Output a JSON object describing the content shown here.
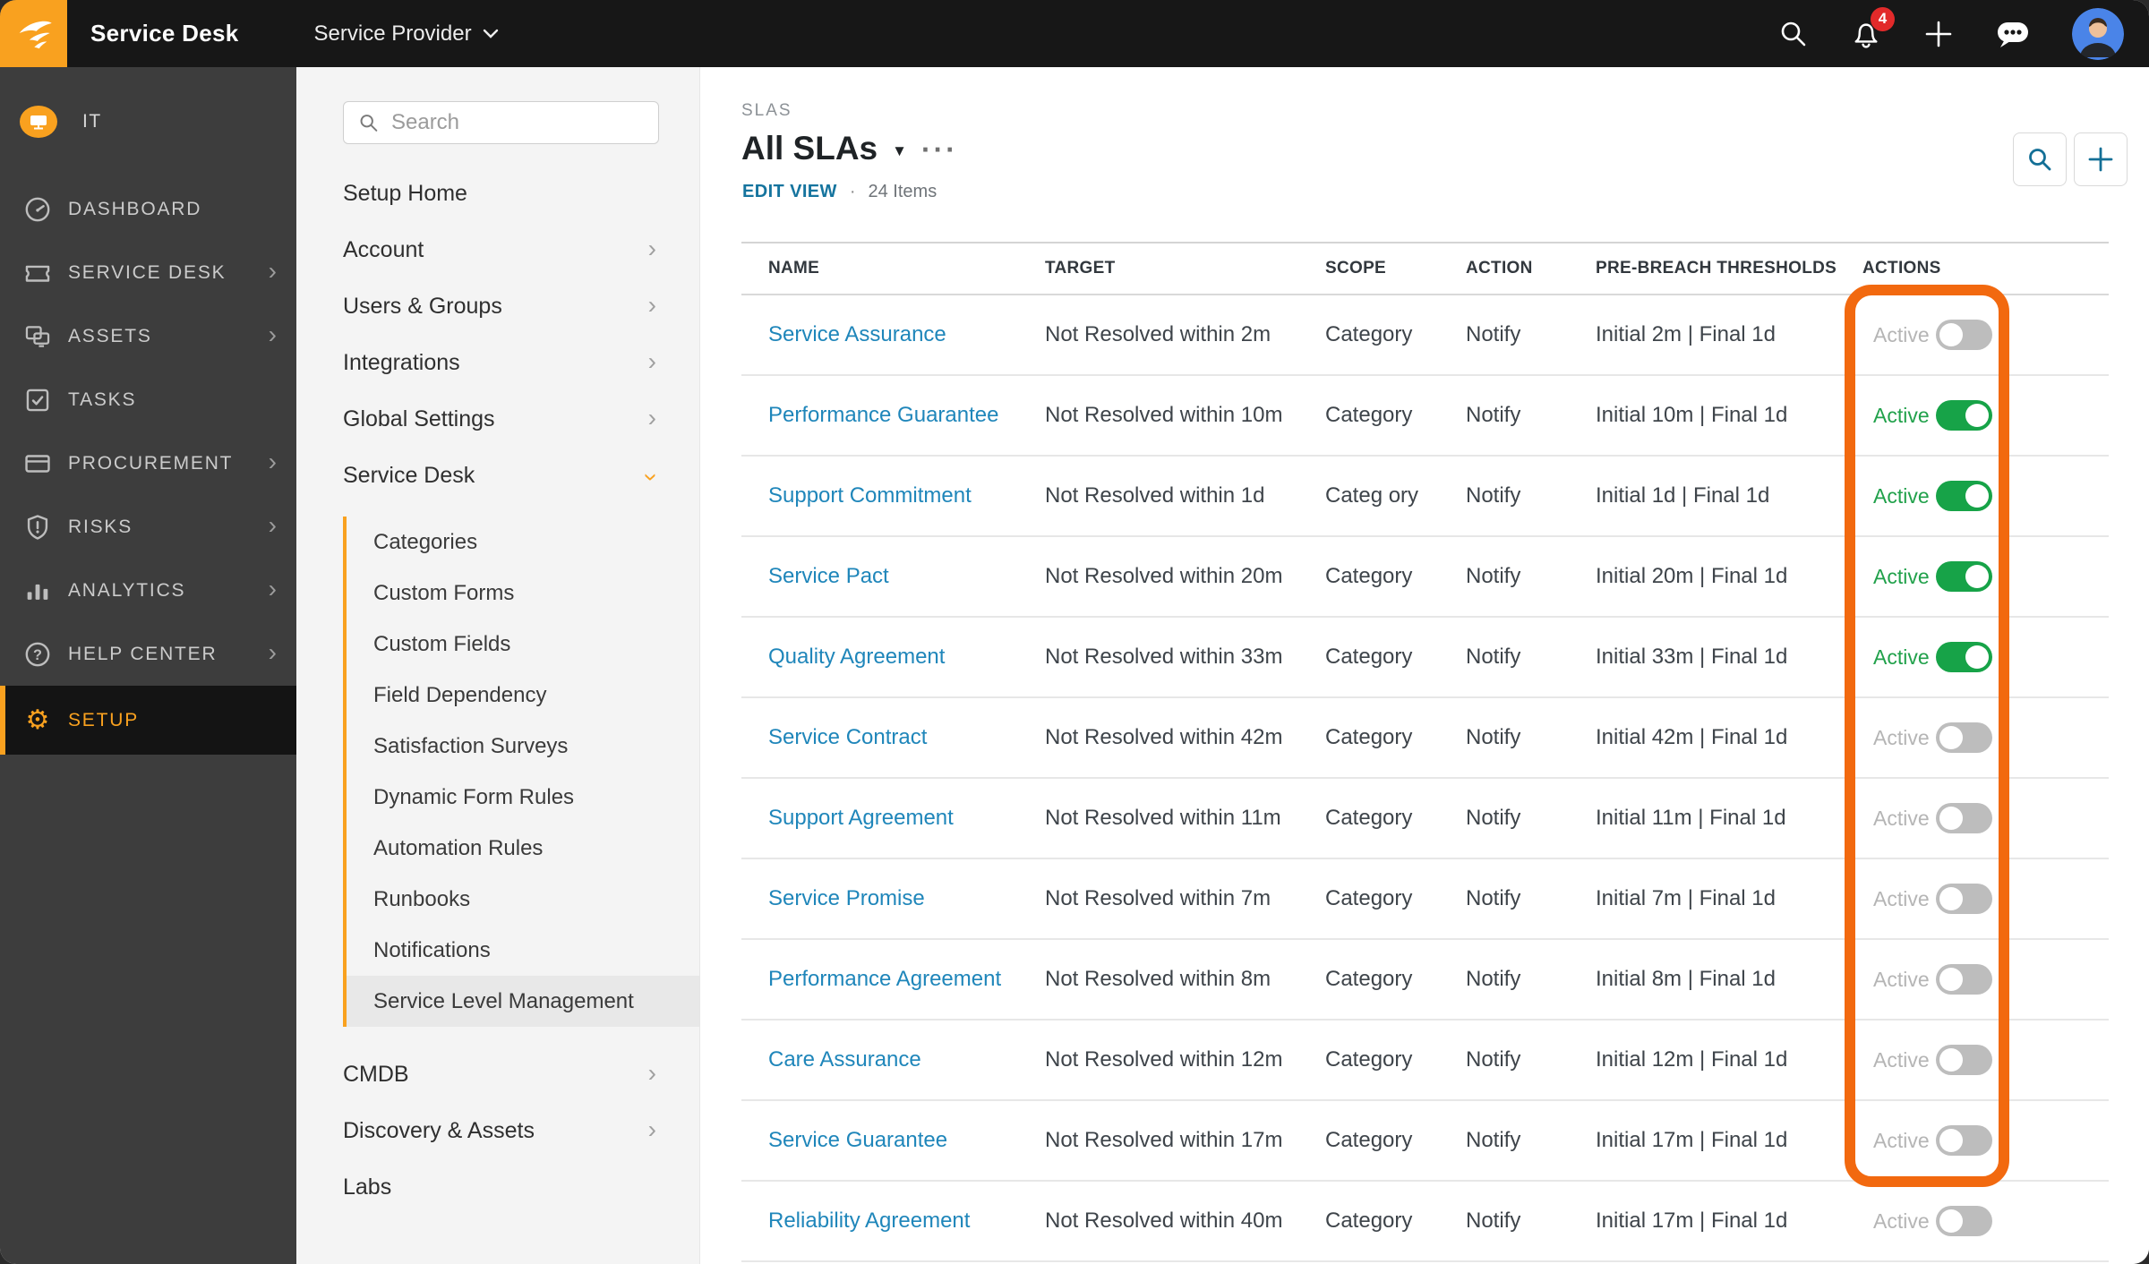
{
  "topbar": {
    "app_title": "Service Desk",
    "org_selector": "Service Provider",
    "notification_count": "4"
  },
  "sidebar": {
    "org_label": "IT",
    "items": [
      {
        "label": "DASHBOARD",
        "icon": "dashboard-icon",
        "chevron": false,
        "active": false
      },
      {
        "label": "SERVICE DESK",
        "icon": "ticket-icon",
        "chevron": true,
        "active": false
      },
      {
        "label": "ASSETS",
        "icon": "assets-icon",
        "chevron": true,
        "active": false
      },
      {
        "label": "TASKS",
        "icon": "tasks-icon",
        "chevron": false,
        "active": false
      },
      {
        "label": "PROCUREMENT",
        "icon": "procurement-icon",
        "chevron": true,
        "active": false
      },
      {
        "label": "RISKS",
        "icon": "risks-icon",
        "chevron": true,
        "active": false
      },
      {
        "label": "ANALYTICS",
        "icon": "analytics-icon",
        "chevron": true,
        "active": false
      },
      {
        "label": "HELP CENTER",
        "icon": "help-icon",
        "chevron": true,
        "active": false
      },
      {
        "label": "SETUP",
        "icon": "gear-icon",
        "chevron": false,
        "active": true
      }
    ]
  },
  "setup_menu": {
    "search_placeholder": "Search",
    "items_top": [
      {
        "label": "Setup Home",
        "chevron": false
      },
      {
        "label": "Account",
        "chevron": true
      },
      {
        "label": "Users & Groups",
        "chevron": true
      },
      {
        "label": "Integrations",
        "chevron": true
      },
      {
        "label": "Global Settings",
        "chevron": true
      }
    ],
    "expanded_item": {
      "label": "Service Desk"
    },
    "children": [
      "Categories",
      "Custom Forms",
      "Custom Fields",
      "Field Dependency",
      "Satisfaction Surveys",
      "Dynamic Form Rules",
      "Automation Rules",
      "Runbooks",
      "Notifications",
      "Service Level Management"
    ],
    "selected_child": "Service Level Management",
    "items_bottom": [
      {
        "label": "CMDB",
        "chevron": true
      },
      {
        "label": "Discovery & Assets",
        "chevron": true
      },
      {
        "label": "Labs",
        "chevron": false
      }
    ]
  },
  "content": {
    "breadcrumb": "SLAS",
    "title": "All SLAs",
    "edit_view_label": "EDIT VIEW",
    "items_count": "24 Items",
    "table": {
      "headers": [
        "NAME",
        "TARGET",
        "SCOPE",
        "ACTION",
        "PRE-BREACH THRESHOLDS",
        "ACTIONS"
      ],
      "active_label": "Active",
      "rows": [
        {
          "name": "Service Assurance",
          "target": "Not Resolved within 2m",
          "scope": "Category",
          "action": "Notify",
          "thresholds": "Initial 2m | Final 1d",
          "active": false
        },
        {
          "name": "Performance Guarantee",
          "target": "Not Resolved within 10m",
          "scope": "Category",
          "action": "Notify",
          "thresholds": "Initial 10m | Final 1d",
          "active": true
        },
        {
          "name": "Support Commitment",
          "target": "Not Resolved within 1d",
          "scope": "Categ ory",
          "action": "Notify",
          "thresholds": "Initial 1d | Final 1d",
          "active": true
        },
        {
          "name": "Service Pact",
          "target": "Not Resolved within 20m",
          "scope": "Category",
          "action": "Notify",
          "thresholds": "Initial 20m | Final 1d",
          "active": true
        },
        {
          "name": "Quality Agreement",
          "target": "Not Resolved within 33m",
          "scope": "Category",
          "action": "Notify",
          "thresholds": "Initial 33m | Final 1d",
          "active": true
        },
        {
          "name": "Service Contract",
          "target": "Not Resolved within 42m",
          "scope": "Category",
          "action": "Notify",
          "thresholds": "Initial 42m | Final 1d",
          "active": false
        },
        {
          "name": "Support Agreement",
          "target": "Not Resolved within 11m",
          "scope": "Category",
          "action": "Notify",
          "thresholds": "Initial 11m | Final 1d",
          "active": false
        },
        {
          "name": "Service Promise",
          "target": "Not Resolved within 7m",
          "scope": "Category",
          "action": "Notify",
          "thresholds": "Initial 7m | Final 1d",
          "active": false
        },
        {
          "name": "Performance Agreement",
          "target": "Not Resolved within 8m",
          "scope": "Category",
          "action": "Notify",
          "thresholds": "Initial 8m | Final 1d",
          "active": false
        },
        {
          "name": "Care Assurance",
          "target": "Not Resolved within 12m",
          "scope": "Category",
          "action": "Notify",
          "thresholds": "Initial 12m | Final 1d",
          "active": false
        },
        {
          "name": "Service Guarantee",
          "target": "Not Resolved within 17m",
          "scope": "Category",
          "action": "Notify",
          "thresholds": "Initial 17m | Final 1d",
          "active": false
        },
        {
          "name": "Reliability Agreement",
          "target": "Not Resolved within 40m",
          "scope": "Category",
          "action": "Notify",
          "thresholds": "Initial 17m | Final 1d",
          "active": false
        }
      ]
    }
  },
  "colors": {
    "accent_orange": "#F9A11F",
    "highlight_orange": "#F2690F",
    "toggle_on_green": "#17A348",
    "link_blue": "#1F86BA",
    "edit_view_blue": "#15749E",
    "badge_red": "#E22A2A"
  }
}
